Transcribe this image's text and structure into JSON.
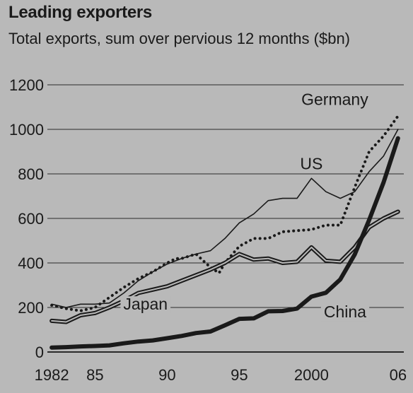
{
  "chart_data": {
    "type": "line",
    "title": "Leading exporters",
    "subtitle": "Total exports, sum over pervious 12 months ($bn)",
    "xlabel": "",
    "ylabel": "",
    "ylim": [
      0,
      1200
    ],
    "xlim": [
      1981.7,
      2006.4
    ],
    "yticks": [
      "0",
      "200",
      "400",
      "600",
      "800",
      "1000",
      "1200"
    ],
    "xticks": [
      {
        "value": 1982,
        "label": "1982"
      },
      {
        "value": 1985,
        "label": "85"
      },
      {
        "value": 1990,
        "label": "90"
      },
      {
        "value": 1995,
        "label": "95"
      },
      {
        "value": 2000,
        "label": "2000"
      },
      {
        "value": 2006,
        "label": "06"
      }
    ],
    "grid": true,
    "series": [
      {
        "name": "Germany",
        "color": "#1a1a1a",
        "style": "dotted",
        "x": [
          1982,
          1983,
          1984,
          1985,
          1986,
          1987,
          1988,
          1989,
          1990,
          1990.6,
          1991,
          1992,
          1993,
          1993.6,
          1994,
          1995,
          1996,
          1997,
          1998,
          1999,
          2000,
          2001,
          2002,
          2003,
          2004,
          2005,
          2006
        ],
        "values": [
          210,
          195,
          185,
          200,
          245,
          290,
          330,
          360,
          400,
          420,
          420,
          440,
          380,
          355,
          400,
          475,
          510,
          510,
          540,
          545,
          550,
          570,
          570,
          740,
          900,
          970,
          1060
        ]
      },
      {
        "name": "US",
        "color": "#1a1a1a",
        "style": "solid",
        "x": [
          1982,
          1983,
          1984,
          1985,
          1986,
          1987,
          1988,
          1989,
          1990,
          1991,
          1992,
          1993,
          1994,
          1995,
          1996,
          1997,
          1998,
          1999,
          2000,
          2001,
          2002,
          2003,
          2004,
          2005,
          2006
        ],
        "values": [
          215,
          200,
          215,
          215,
          220,
          265,
          320,
          360,
          395,
          420,
          440,
          455,
          510,
          580,
          620,
          680,
          690,
          690,
          780,
          720,
          690,
          720,
          810,
          880,
          1000
        ]
      },
      {
        "name": "Japan",
        "color": "#1a1a1a",
        "style": "double",
        "x": [
          1982,
          1983,
          1984,
          1985,
          1986,
          1987,
          1988,
          1989,
          1990,
          1991,
          1992,
          1993,
          1994,
          1995,
          1996,
          1997,
          1998,
          1999,
          2000,
          2001,
          2002,
          2003,
          2004,
          2005,
          2006
        ],
        "values": [
          140,
          135,
          165,
          175,
          200,
          230,
          265,
          280,
          295,
          320,
          345,
          370,
          400,
          440,
          415,
          420,
          400,
          405,
          470,
          410,
          405,
          470,
          560,
          600,
          630
        ]
      },
      {
        "name": "China",
        "color": "#1a1a1a",
        "style": "bold",
        "x": [
          1982,
          1983,
          1984,
          1985,
          1986,
          1987,
          1988,
          1989,
          1990,
          1991,
          1992,
          1993,
          1994,
          1995,
          1996,
          1997,
          1998,
          1999,
          2000,
          2001,
          2002,
          2003,
          2004,
          2005,
          2006
        ],
        "values": [
          20,
          22,
          25,
          27,
          30,
          39,
          47,
          52,
          62,
          72,
          85,
          92,
          120,
          149,
          151,
          183,
          184,
          195,
          249,
          266,
          326,
          438,
          593,
          762,
          960
        ]
      }
    ],
    "labels": [
      {
        "text": "Germany",
        "x": 1999.3,
        "y": 1110,
        "anchor": "start"
      },
      {
        "text": "US",
        "x": 2000.0,
        "y": 820,
        "anchor": "middle"
      },
      {
        "text": "Japan",
        "x": 1988.5,
        "y": 190,
        "anchor": "middle"
      },
      {
        "text": "China",
        "x": 2003.8,
        "y": 155,
        "anchor": "end"
      }
    ]
  }
}
